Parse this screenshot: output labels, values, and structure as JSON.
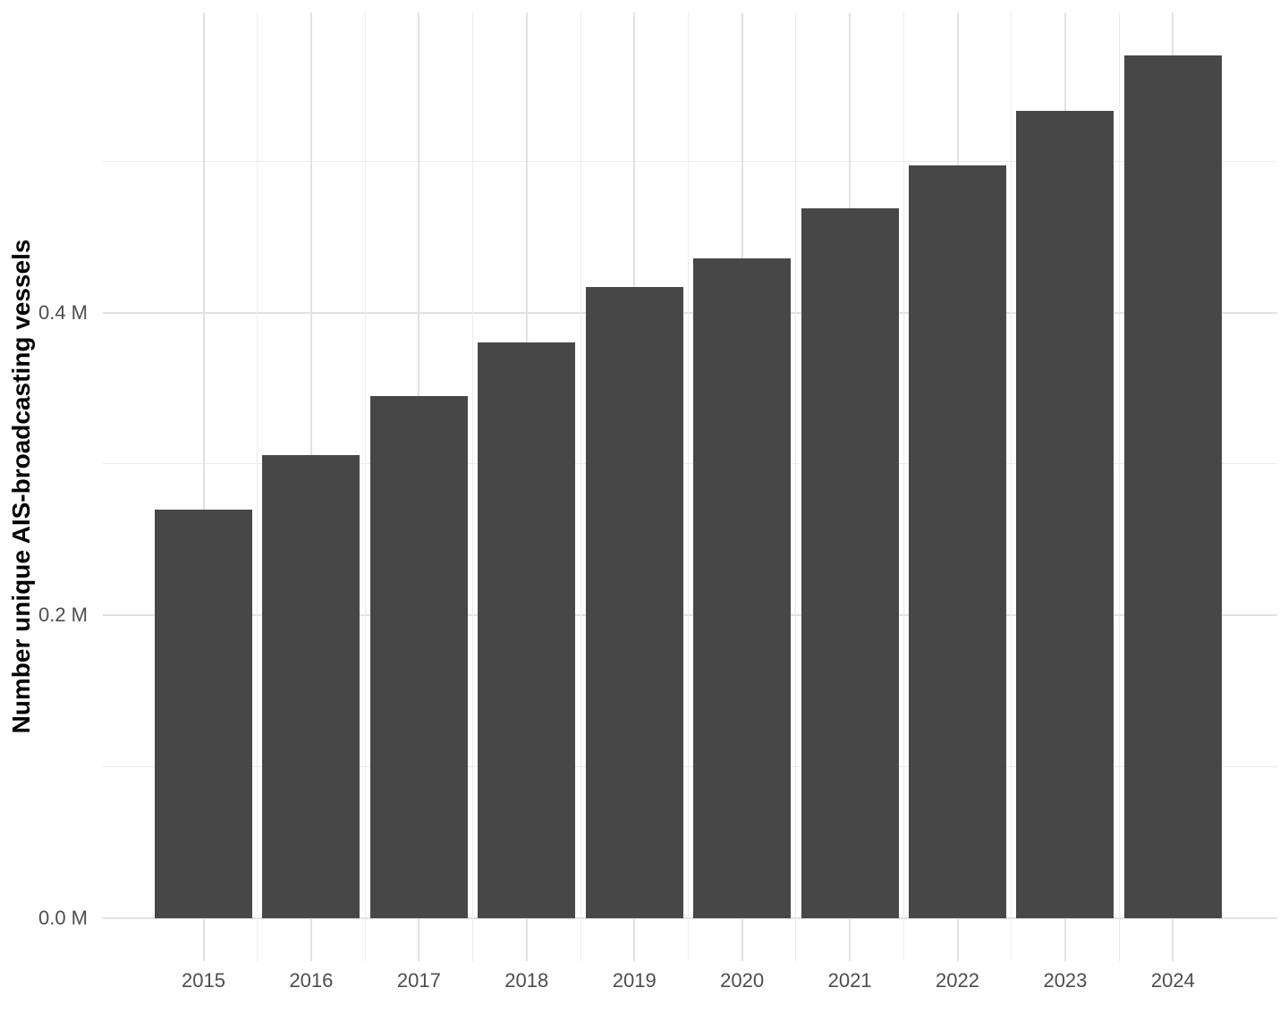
{
  "chart_data": {
    "type": "bar",
    "title": "",
    "xlabel": "",
    "ylabel": "Number unique AIS-broadcasting vessels",
    "categories": [
      "2015",
      "2016",
      "2017",
      "2018",
      "2019",
      "2020",
      "2021",
      "2022",
      "2023",
      "2024"
    ],
    "values": [
      0.27,
      0.306,
      0.345,
      0.38,
      0.417,
      0.436,
      0.469,
      0.497,
      0.533,
      0.57
    ],
    "unit": "M",
    "ylim": [
      0,
      0.6
    ],
    "y_ticks": [
      {
        "value": 0.0,
        "label": "0.0 M"
      },
      {
        "value": 0.2,
        "label": "0.2 M"
      },
      {
        "value": 0.4,
        "label": "0.4 M"
      }
    ],
    "y_minor_ticks": [
      0.1,
      0.3,
      0.5
    ],
    "grid": true,
    "legend_position": "none",
    "colors": {
      "bar": "#474747",
      "grid_major": "#E2E2E2",
      "grid_minor": "#ECECEC",
      "axis_text": "#4D4D4D",
      "axis_title": "#000000",
      "background": "#FFFFFF"
    }
  }
}
